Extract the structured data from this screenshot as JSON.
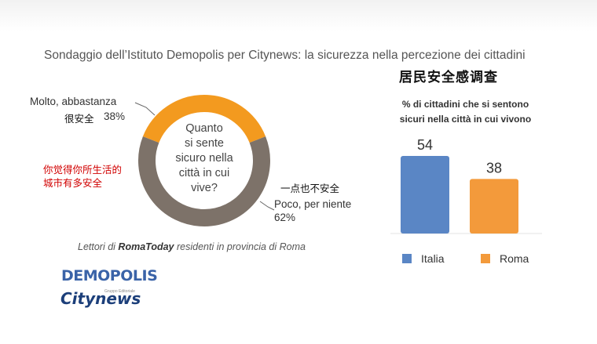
{
  "header": {
    "title": "Sondaggio dell’Istituto Demopolis per Citynews: la sicurezza nella percezione dei cittadini",
    "chinese_title": "居民安全感调查"
  },
  "donut": {
    "question_lines": [
      "Quanto",
      "si sente",
      "sicuro nella",
      "città in cui",
      "vive?"
    ],
    "question_cn_lines": [
      "你觉得你所生活的",
      "城市有多安全"
    ],
    "segments": [
      {
        "label": "Molto, abbastanza",
        "label_cn": "很安全",
        "value_text": "38%",
        "color": "#f39a1f"
      },
      {
        "label": "Poco, per niente",
        "label_cn": "一点也不安全",
        "value_text": "62%",
        "color": "#7d7269"
      }
    ],
    "source_brand": "RomaToday",
    "source_prefix": "Lettori di ",
    "source_suffix": " residenti in provincia di Roma"
  },
  "logos": {
    "demopolis": "DEMOPOLIS",
    "citynews": "Citynews",
    "citynews_sub": "Gruppo Editoriale"
  },
  "chart_data": [
    {
      "type": "pie",
      "categories": [
        "Molto, abbastanza",
        "Poco, per niente"
      ],
      "values": [
        38,
        62
      ],
      "colors": [
        "#f39a1f",
        "#7d7269"
      ],
      "title": "Quanto si sente sicuro nella città in cui vive?"
    },
    {
      "type": "bar",
      "title": "% di cittadini che si sentono sicuri nella città in cui vivono",
      "categories": [
        "Italia",
        "Roma"
      ],
      "values": [
        54,
        38
      ],
      "colors": [
        "#5a86c5",
        "#f39a3b"
      ],
      "ylim": [
        0,
        60
      ],
      "legend": "bottom"
    }
  ]
}
